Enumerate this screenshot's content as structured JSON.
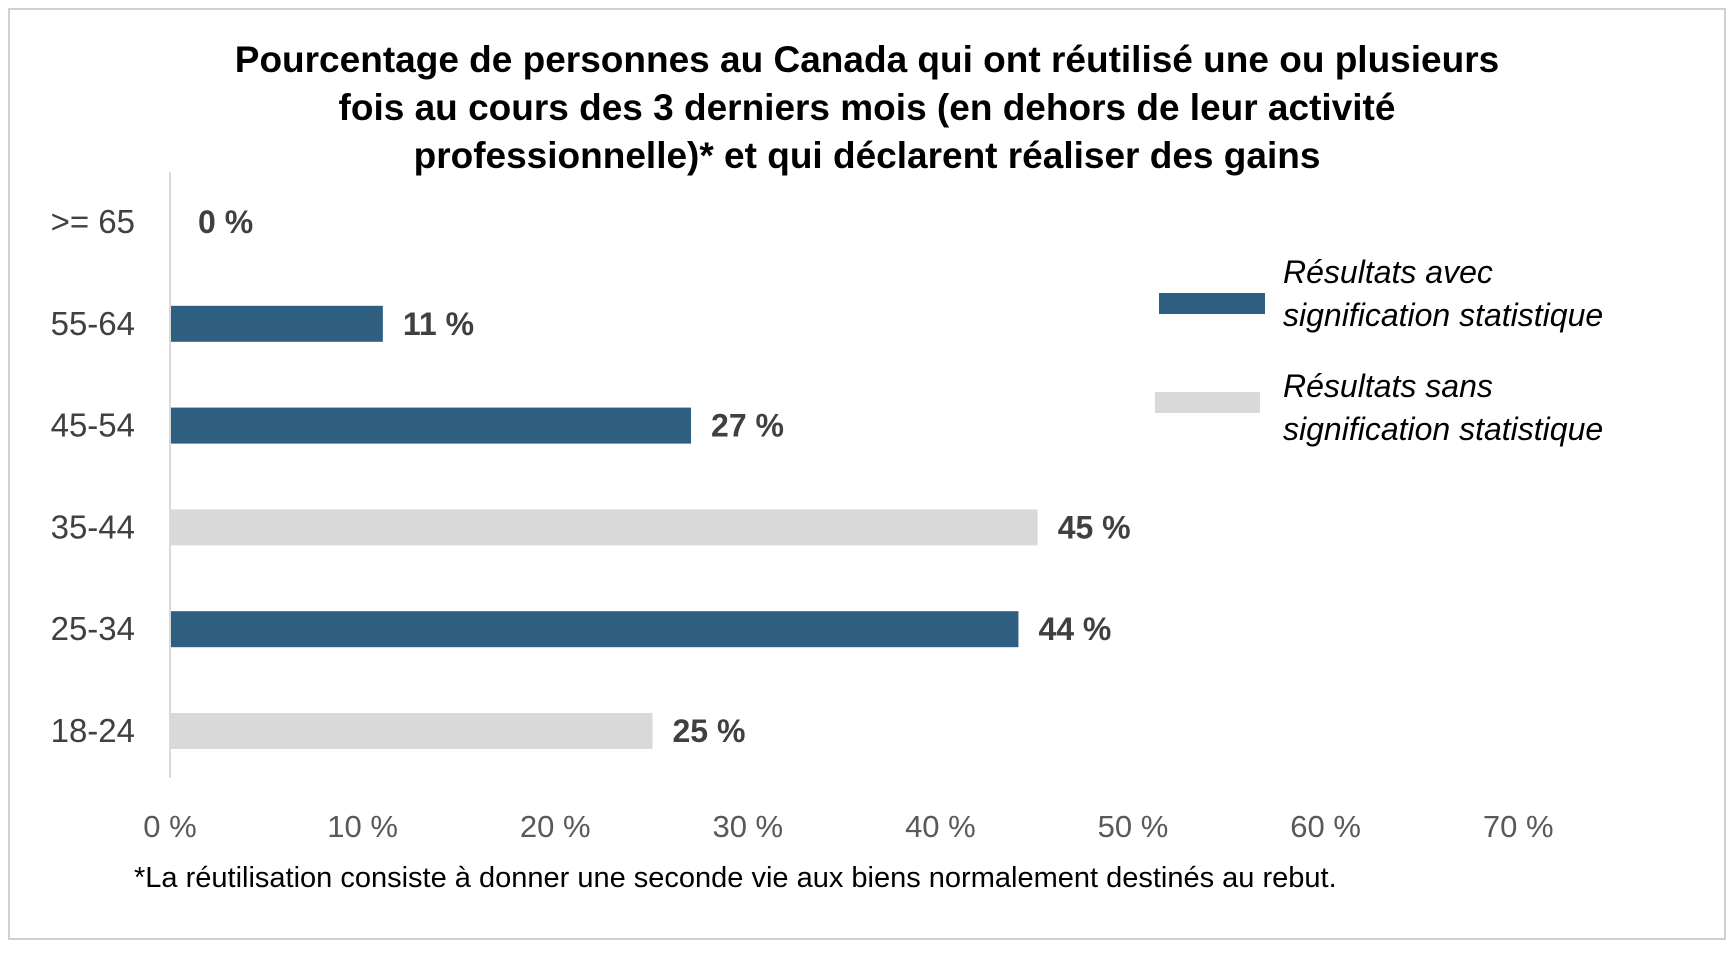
{
  "chart_data": {
    "type": "bar",
    "orientation": "horizontal",
    "title_lines": [
      "Pourcentage de personnes au Canada qui ont réutilisé une ou plusieurs",
      "fois au cours des 3 derniers mois (en dehors de leur activité",
      "professionnelle)* et qui déclarent réaliser des gains"
    ],
    "categories": [
      ">= 65",
      "55-64",
      "45-54",
      "35-44",
      "25-34",
      "18-24"
    ],
    "values": [
      0,
      11,
      27,
      45,
      44,
      25
    ],
    "value_labels": [
      "0 %",
      "11 %",
      "27 %",
      "45 %",
      "44 %",
      "25 %"
    ],
    "significant": [
      true,
      true,
      true,
      false,
      true,
      false
    ],
    "xlim": [
      0,
      70
    ],
    "x_ticks": [
      0,
      10,
      20,
      30,
      40,
      50,
      60,
      70
    ],
    "x_tick_labels": [
      "0 %",
      "10 %",
      "20 %",
      "30 %",
      "40 %",
      "50 %",
      "60 %",
      "70 %"
    ],
    "grid": false,
    "legend_position": "right",
    "legend": [
      {
        "lines": [
          "Résultats avec",
          "signification statistique"
        ],
        "color": "#2E5E80",
        "significant": true
      },
      {
        "lines": [
          "Résultats sans",
          "signification statistique"
        ],
        "color": "#D9D9D9",
        "significant": false
      }
    ],
    "footnote": "*La réutilisation consiste à donner une seconde vie aux biens normalement destinés au rebut."
  },
  "colors": {
    "significant": "#2E5E80",
    "not_significant": "#D9D9D9",
    "axis": "#D9D9D9",
    "frame": "#D0D0D0"
  }
}
